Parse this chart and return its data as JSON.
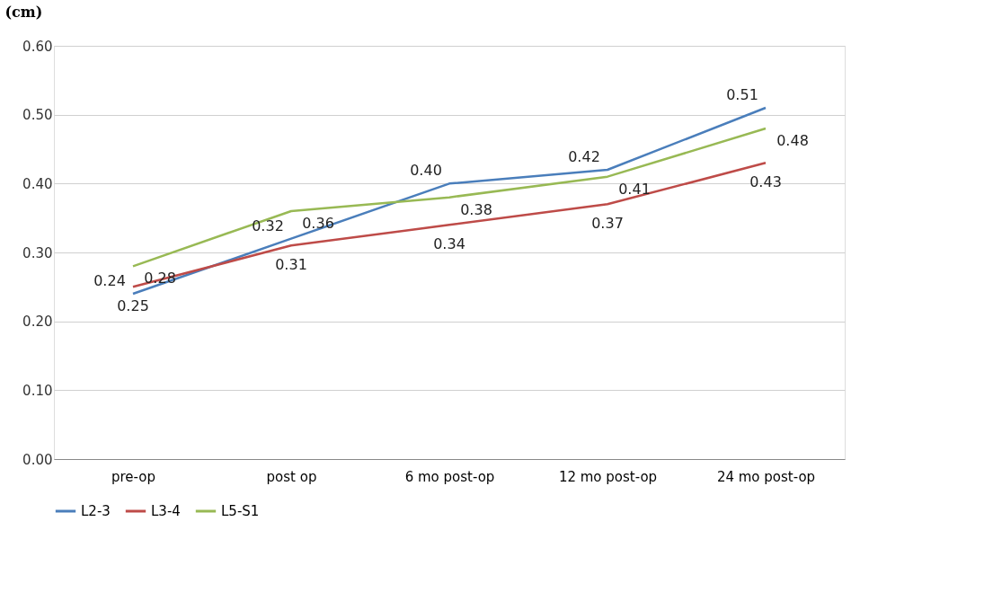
{
  "chart_data": {
    "type": "line",
    "ylabel": "(cm)",
    "categories": [
      "pre-op",
      "post op",
      "6 mo post-op",
      "12 mo post-op",
      "24 mo post-op"
    ],
    "series": [
      {
        "name": "L2-3",
        "color": "#4a7ebb",
        "values": [
          0.24,
          0.32,
          0.4,
          0.42,
          0.51
        ],
        "value_labels": [
          "0.24",
          "0.32",
          "0.40",
          "0.42",
          "0.51"
        ]
      },
      {
        "name": "L3-4",
        "color": "#be4b48",
        "values": [
          0.25,
          0.31,
          0.34,
          0.37,
          0.43
        ],
        "value_labels": [
          "0.25",
          "0.31",
          "0.34",
          "0.37",
          "0.43"
        ]
      },
      {
        "name": "L5-S1",
        "color": "#98b954",
        "values": [
          0.28,
          0.36,
          0.38,
          0.41,
          0.48
        ],
        "value_labels": [
          "0.28",
          "0.36",
          "0.38",
          "0.41",
          "0.48"
        ]
      }
    ],
    "ylim": [
      0,
      0.6
    ],
    "yticks": [
      {
        "value": 0,
        "label": "0.00"
      },
      {
        "value": 0.1,
        "label": "0.10"
      },
      {
        "value": 0.2,
        "label": "0.20"
      },
      {
        "value": 0.3,
        "label": "0.30"
      },
      {
        "value": 0.4,
        "label": "0.40"
      },
      {
        "value": 0.5,
        "label": "0.50"
      },
      {
        "value": 0.6,
        "label": "0.60"
      }
    ],
    "grid": "y",
    "legend": "bottom",
    "marker": "none",
    "line_style": "solid"
  }
}
